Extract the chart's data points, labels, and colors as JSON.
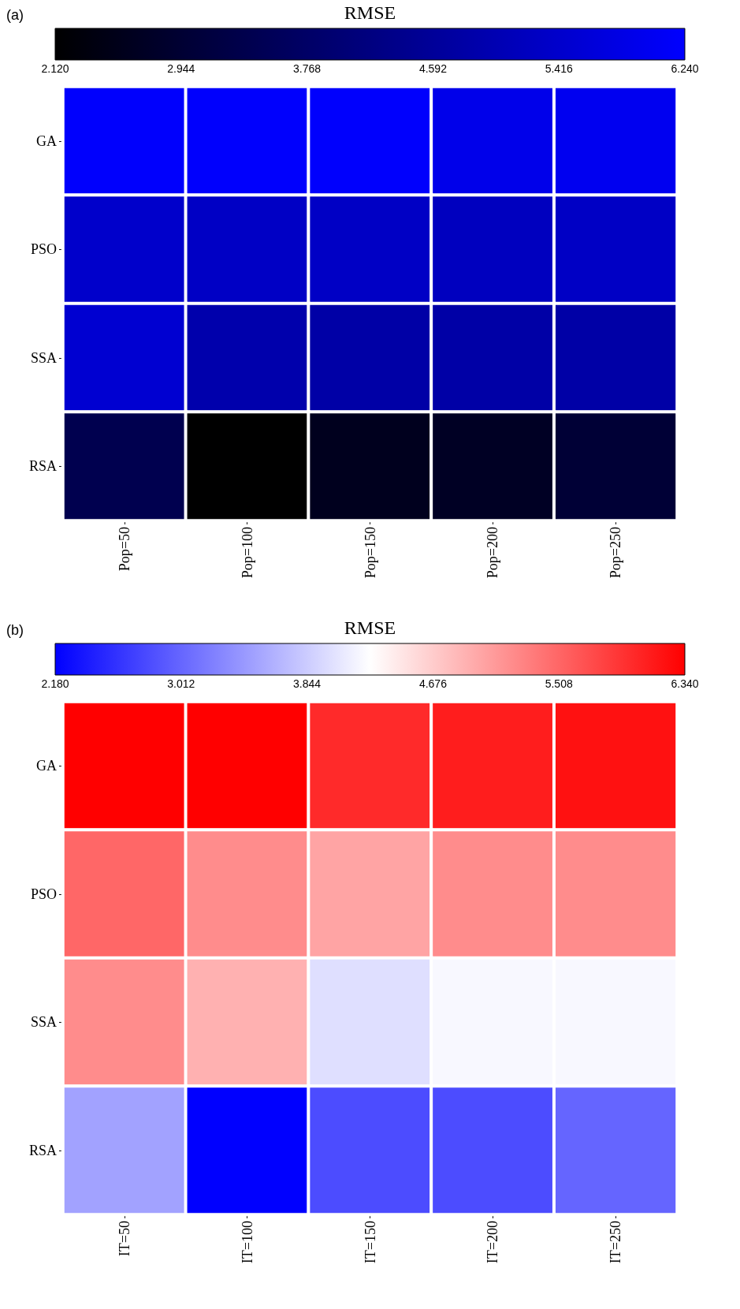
{
  "chart_data": [
    {
      "type": "heatmap",
      "clabel": "RMSE",
      "annotations": [
        "(a)"
      ],
      "categories": [
        "Pop=50",
        "Pop=100",
        "Pop=150",
        "Pop=200",
        "Pop=250"
      ],
      "y_categories": [
        "GA",
        "PSO",
        "SSA",
        "RSA"
      ],
      "cells": [
        [
          6.2,
          6.2,
          6.2,
          5.9,
          6.0
        ],
        [
          5.4,
          5.3,
          5.3,
          5.2,
          5.3
        ],
        [
          5.5,
          4.9,
          4.8,
          4.8,
          4.8
        ],
        [
          3.4,
          2.12,
          2.6,
          2.7,
          3.0
        ]
      ],
      "colors": [
        "#000000",
        "#0000ff"
      ],
      "clim": [
        2.12,
        6.24
      ],
      "cticks": [
        {
          "value": 2.12,
          "label": "2.120"
        },
        {
          "value": 2.944,
          "label": "2.944"
        },
        {
          "value": 3.768,
          "label": "3.768"
        },
        {
          "value": 4.592,
          "label": "4.592"
        },
        {
          "value": 5.416,
          "label": "5.416"
        },
        {
          "value": 6.24,
          "label": "6.240"
        }
      ]
    },
    {
      "type": "heatmap",
      "clabel": "RMSE",
      "annotations": [
        "(b)"
      ],
      "categories": [
        "IT=50",
        "IT=100",
        "IT=150",
        "IT=200",
        "IT=250"
      ],
      "y_categories": [
        "GA",
        "PSO",
        "SSA",
        "RSA"
      ],
      "cells": [
        [
          6.34,
          6.34,
          6.0,
          6.1,
          6.2
        ],
        [
          5.5,
          5.2,
          5.0,
          5.2,
          5.2
        ],
        [
          5.2,
          4.9,
          4.0,
          4.2,
          4.2
        ],
        [
          3.5,
          2.18,
          2.8,
          2.8,
          3.0
        ]
      ],
      "colors": [
        "#0000ff",
        "#ffffff",
        "#ff0000"
      ],
      "clim": [
        2.18,
        6.34
      ],
      "cticks": [
        {
          "value": 2.18,
          "label": "2.180"
        },
        {
          "value": 3.012,
          "label": "3.012"
        },
        {
          "value": 3.844,
          "label": "3.844"
        },
        {
          "value": 4.676,
          "label": "4.676"
        },
        {
          "value": 5.508,
          "label": "5.508"
        },
        {
          "value": 6.34,
          "label": "6.340"
        }
      ]
    }
  ]
}
